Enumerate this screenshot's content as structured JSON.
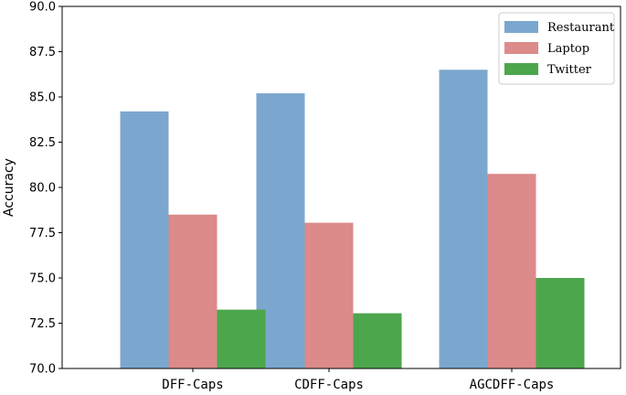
{
  "chart_data": {
    "type": "bar",
    "title": "",
    "xlabel": "",
    "ylabel": "Accuracy",
    "ylim": [
      70.0,
      90.0
    ],
    "yticks": [
      "70.0",
      "72.5",
      "75.0",
      "77.5",
      "80.0",
      "82.5",
      "85.0",
      "87.5",
      "90.0"
    ],
    "categories": [
      "DFF-Caps",
      "CDFF-Caps",
      "AGCDFF-Caps"
    ],
    "series": [
      {
        "name": "Restaurant",
        "color": "#7ba7cf",
        "values": [
          84.2,
          85.2,
          86.5
        ]
      },
      {
        "name": "Laptop",
        "color": "#dc8a8a",
        "values": [
          78.5,
          78.05,
          80.75
        ]
      },
      {
        "name": "Twitter",
        "color": "#4ca64c",
        "values": [
          73.25,
          73.05,
          75.0
        ]
      }
    ],
    "legend_position": "top-right",
    "grid": false
  }
}
